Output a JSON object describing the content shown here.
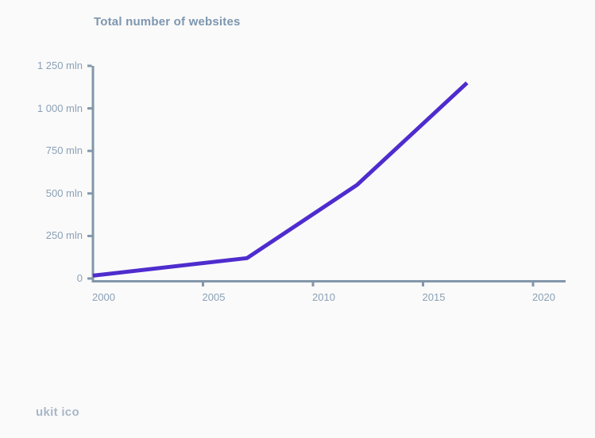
{
  "colors": {
    "background": "#fafafa",
    "title_text": "#7d96af",
    "tick_text": "#8ba1b7",
    "axis": "#8397ab",
    "line": "#4e2cce",
    "watermark": "#a8b7c7"
  },
  "watermark": "ukit ico",
  "chart_data": {
    "type": "line",
    "title": "Total number of websites",
    "x": [
      2000,
      2007,
      2012,
      2017
    ],
    "series": [
      {
        "name": "Total number of websites",
        "values": [
          17,
          120,
          550,
          1150
        ]
      }
    ],
    "unit": "mln",
    "x_tick_values": [
      2000,
      2005,
      2010,
      2015,
      2020
    ],
    "x_tick_labels": [
      "2000",
      "2005",
      "2010",
      "2015",
      "2020"
    ],
    "y_tick_values": [
      1250,
      1000,
      750,
      500,
      250,
      0
    ],
    "y_tick_labels": [
      "1 250 mln",
      "1 000 mln",
      "750 mln",
      "500 mln",
      "250 mln",
      "0"
    ],
    "xlim": [
      2000,
      2021.5
    ],
    "ylim": [
      0,
      1250
    ],
    "grid": false,
    "legend": "none",
    "line_color": "#4e2cce"
  }
}
